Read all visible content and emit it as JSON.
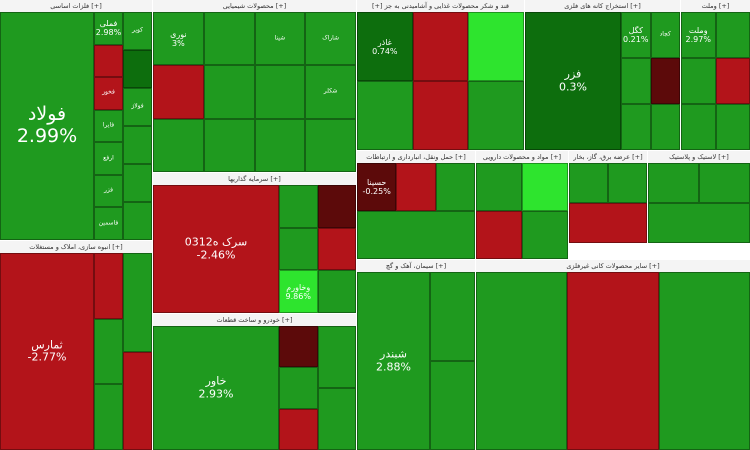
{
  "colors": {
    "up_strong": "#0d6e0d",
    "up": "#1f9a1f",
    "up_light": "#35b335",
    "up_bright": "#2ee42e",
    "down": "#b3141a",
    "down_dark": "#5c0a0a",
    "header_bg": "#f4f4f4"
  },
  "sectors": [
    {
      "id": "metals",
      "header": "فلزات اساسی [+]",
      "tiles": [
        {
          "symbol": "فولاد",
          "change": "2.99%",
          "color": "up",
          "size": "big"
        },
        {
          "symbol": "فملی",
          "change": "2.98%",
          "color": "up",
          "size": "small"
        },
        {
          "symbol": "",
          "change": "",
          "color": "down"
        },
        {
          "symbol": "فخوز",
          "change": "",
          "color": "down"
        },
        {
          "symbol": "فایرا",
          "change": "",
          "color": "up"
        },
        {
          "symbol": "ارفع",
          "change": "",
          "color": "up"
        },
        {
          "symbol": "فزر",
          "change": "",
          "color": "up"
        },
        {
          "symbol": "فاسمین",
          "change": "",
          "color": "up"
        },
        {
          "symbol": "کویر",
          "change": "",
          "color": "up"
        },
        {
          "symbol": "",
          "change": "",
          "color": "up_strong"
        },
        {
          "symbol": "فولاژ",
          "change": "",
          "color": "up"
        },
        {
          "symbol": "",
          "change": "",
          "color": "up"
        },
        {
          "symbol": "",
          "change": "",
          "color": "up"
        },
        {
          "symbol": "",
          "change": "",
          "color": "up"
        }
      ]
    },
    {
      "id": "chemicals",
      "header": "محصولات شیمیایی [+]",
      "tiles": [
        {
          "symbol": "نوری",
          "change": "3%",
          "color": "up",
          "size": "small"
        },
        {
          "symbol": "",
          "change": "",
          "color": "up"
        },
        {
          "symbol": "شپنا",
          "change": "",
          "color": "up"
        },
        {
          "symbol": "شاراک",
          "change": "",
          "color": "up"
        },
        {
          "symbol": "",
          "change": "",
          "color": "down"
        },
        {
          "symbol": "",
          "change": "",
          "color": "up"
        },
        {
          "symbol": "",
          "change": "",
          "color": "up"
        },
        {
          "symbol": "شکلر",
          "change": "",
          "color": "up"
        },
        {
          "symbol": "",
          "change": "",
          "color": "up"
        },
        {
          "symbol": "",
          "change": "",
          "color": "up"
        },
        {
          "symbol": "",
          "change": "",
          "color": "up"
        },
        {
          "symbol": "",
          "change": "",
          "color": "up"
        }
      ]
    },
    {
      "id": "sugar",
      "header": "[+] قند و شکر محصولات غذایی و آشامیدنی به جز",
      "tiles": [
        {
          "symbol": "غاذر",
          "change": "0.74%",
          "color": "up_strong",
          "size": "small"
        },
        {
          "symbol": "",
          "change": "",
          "color": "down"
        },
        {
          "symbol": "",
          "change": "",
          "color": "up_bright"
        },
        {
          "symbol": "",
          "change": "",
          "color": "up"
        },
        {
          "symbol": "",
          "change": "",
          "color": "down"
        },
        {
          "symbol": "",
          "change": "",
          "color": "up"
        }
      ]
    },
    {
      "id": "mining",
      "header": "استخراج کانه های فلزی [+]",
      "tiles": [
        {
          "symbol": "فزر",
          "change": "0.3%",
          "color": "up_strong",
          "size": "mid"
        },
        {
          "symbol": "کگل",
          "change": "0.21%",
          "color": "up",
          "size": "small"
        },
        {
          "symbol": "",
          "change": "",
          "color": "up"
        },
        {
          "symbol": "",
          "change": "",
          "color": "up"
        },
        {
          "symbol": "کچاد",
          "change": "",
          "color": "up"
        },
        {
          "symbol": "",
          "change": "",
          "color": "down_dark"
        },
        {
          "symbol": "",
          "change": "",
          "color": "up"
        }
      ]
    },
    {
      "id": "investments",
      "header": "سرمایه گذاریها [+]",
      "tiles": [
        {
          "symbol": "سرک ه0312",
          "change": "-2.46%",
          "color": "down",
          "size": "mid"
        },
        {
          "symbol": "",
          "change": "",
          "color": "up"
        },
        {
          "symbol": "",
          "change": "",
          "color": "up"
        },
        {
          "symbol": "وخاورم",
          "change": "9.86%",
          "color": "up_bright",
          "size": "small"
        },
        {
          "symbol": "",
          "change": "",
          "color": "down_dark"
        },
        {
          "symbol": "",
          "change": "",
          "color": "down"
        },
        {
          "symbol": "",
          "change": "",
          "color": "up"
        }
      ]
    },
    {
      "id": "multi",
      "header": "انبوه سازی، املاک و مستغلات [+]",
      "tiles": [
        {
          "symbol": "ثمارس",
          "change": "-2.77%",
          "color": "down",
          "size": "mid"
        },
        {
          "symbol": "",
          "change": "",
          "color": "down"
        },
        {
          "symbol": "",
          "change": "",
          "color": "up"
        },
        {
          "symbol": "",
          "change": "",
          "color": "up"
        },
        {
          "symbol": "",
          "change": "",
          "color": "up"
        },
        {
          "symbol": "",
          "change": "",
          "color": "down"
        }
      ]
    },
    {
      "id": "auto",
      "header": "خودرو و ساخت قطعات [+]",
      "tiles": [
        {
          "symbol": "خاور",
          "change": "2.93%",
          "color": "up",
          "size": "mid"
        },
        {
          "symbol": "",
          "change": "",
          "color": "down_dark"
        },
        {
          "symbol": "",
          "change": "",
          "color": "up"
        },
        {
          "symbol": "",
          "change": "",
          "color": "down"
        },
        {
          "symbol": "",
          "change": "",
          "color": "up"
        },
        {
          "symbol": "",
          "change": "",
          "color": "up"
        }
      ]
    },
    {
      "id": "pharma",
      "header": "مواد و محصولات دارویی [+]",
      "tiles": [
        {
          "symbol": "",
          "change": "",
          "color": "up"
        },
        {
          "symbol": "",
          "change": "",
          "color": "up_bright"
        },
        {
          "symbol": "",
          "change": "",
          "color": "down"
        },
        {
          "symbol": "",
          "change": "",
          "color": "up"
        }
      ]
    },
    {
      "id": "transport",
      "header": "حمل ونقل، انبارداری و ارتباطات [+]",
      "tiles": [
        {
          "symbol": "حسینا",
          "change": "-0.25%",
          "color": "down_dark",
          "size": "small"
        },
        {
          "symbol": "",
          "change": "",
          "color": "down"
        },
        {
          "symbol": "",
          "change": "",
          "color": "up"
        },
        {
          "symbol": "",
          "change": "",
          "color": "up"
        }
      ]
    },
    {
      "id": "cement",
      "header": "سیمان، آهک و گچ [+]",
      "tiles": [
        {
          "symbol": "شبندر",
          "change": "2.88%",
          "color": "up",
          "size": "mid"
        },
        {
          "symbol": "",
          "change": "",
          "color": "up"
        },
        {
          "symbol": "",
          "change": "",
          "color": "up"
        }
      ]
    },
    {
      "id": "utilities",
      "header": "عرضه برق، گاز، بخار [+]",
      "tiles": [
        {
          "symbol": "",
          "change": "",
          "color": "up"
        },
        {
          "symbol": "",
          "change": "",
          "color": "up"
        },
        {
          "symbol": "",
          "change": "",
          "color": "down"
        }
      ]
    },
    {
      "id": "misc",
      "header": "سایر محصولات کانی غیرفلزی [+]",
      "tiles": [
        {
          "symbol": "",
          "change": "",
          "color": "up"
        },
        {
          "symbol": "",
          "change": "",
          "color": "down"
        },
        {
          "symbol": "",
          "change": "",
          "color": "up"
        }
      ]
    },
    {
      "id": "rubber",
      "header": "لاستیک و پلاستیک [+]",
      "tiles": [
        {
          "symbol": "",
          "change": "",
          "color": "up"
        },
        {
          "symbol": "",
          "change": "",
          "color": "up"
        },
        {
          "symbol": "",
          "change": "",
          "color": "up"
        }
      ]
    },
    {
      "id": "right",
      "header": "وملت [+]",
      "tiles": [
        {
          "symbol": "وملت",
          "change": "2.97%",
          "color": "up",
          "size": "small"
        },
        {
          "symbol": "",
          "change": "",
          "color": "up"
        },
        {
          "symbol": "",
          "change": "",
          "color": "up"
        },
        {
          "symbol": "",
          "change": "",
          "color": "down"
        },
        {
          "symbol": "",
          "change": "",
          "color": "up"
        },
        {
          "symbol": "",
          "change": "",
          "color": "up"
        }
      ]
    }
  ]
}
